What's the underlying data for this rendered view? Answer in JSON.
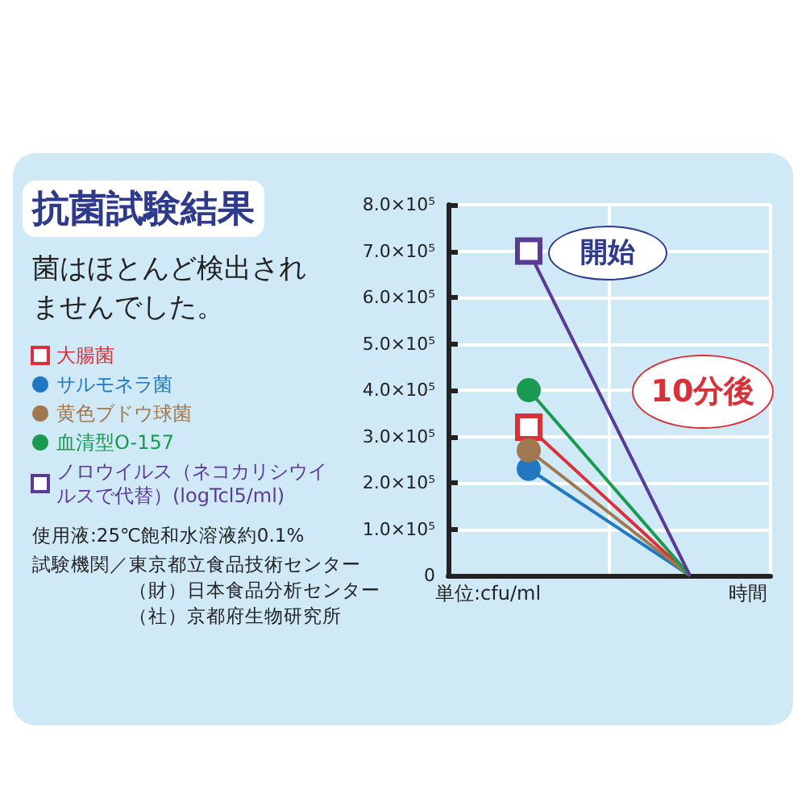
{
  "chart_data": {
    "type": "line",
    "title": "抗菌試験結果",
    "subtitle": "菌はほとんど検出されませんでした。",
    "xlabel": "時間",
    "categories": [
      null,
      null
    ],
    "series": [
      {
        "name": "大腸菌",
        "color": "#d9303a",
        "marker": "square",
        "values": [
          320000,
          0
        ]
      },
      {
        "name": "サルモネラ菌",
        "color": "#1f78c1",
        "marker": "circle",
        "values": [
          230000,
          0
        ]
      },
      {
        "name": "黄色ブドウ球菌",
        "color": "#a07850",
        "marker": "circle",
        "values": [
          270000,
          0
        ]
      },
      {
        "name": "血清型O-157",
        "color": "#1a9a50",
        "marker": "circle",
        "values": [
          400000,
          0
        ]
      },
      {
        "name": "ノロウイルス（ネコカリシウイルスで代替）(logTcl5/ml)",
        "color": "#5b3a96",
        "marker": "square",
        "values": [
          700000,
          0
        ]
      }
    ],
    "ylim": [
      0,
      800000
    ],
    "yticks": [
      {
        "value": 0,
        "label": "0"
      },
      {
        "value": 100000,
        "label": "1.0×10⁵"
      },
      {
        "value": 200000,
        "label": "2.0×10⁵"
      },
      {
        "value": 300000,
        "label": "3.0×10⁵"
      },
      {
        "value": 400000,
        "label": "4.0×10⁵"
      },
      {
        "value": 500000,
        "label": "5.0×10⁵"
      },
      {
        "value": 600000,
        "label": "6.0×10⁵"
      },
      {
        "value": 700000,
        "label": "7.0×10⁵"
      },
      {
        "value": 800000,
        "label": "8.0×10⁵"
      }
    ],
    "grid": true,
    "legend": "left",
    "annotations": [
      "開始",
      "10分後",
      "使用液:25℃飽和水溶液約0.1%",
      "試験機関／東京都立食品技術センター",
      "（財）日本食品分析センター",
      "（社）京都府生物研究所",
      "単位:cfu/ml"
    ]
  }
}
